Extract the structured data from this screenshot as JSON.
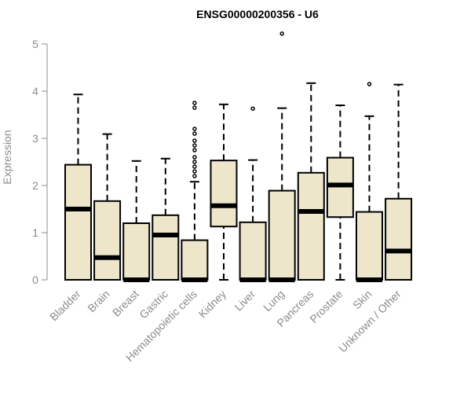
{
  "chart_data": {
    "type": "boxplot",
    "title": "ENSG00000200356 - U6",
    "xlabel": "",
    "ylabel": "Expression",
    "ylim": [
      0,
      5
    ],
    "yticks": [
      0,
      1,
      2,
      3,
      4,
      5
    ],
    "grid": false,
    "legend": "none",
    "box_color": "#ede6cb",
    "categories": [
      "Bladder",
      "Brain",
      "Breast",
      "Gastric",
      "Hematopoietic cells",
      "Kidney",
      "Liver",
      "Lung",
      "Pancreas",
      "Prostate",
      "Skin",
      "Unknown / Other"
    ],
    "boxes": [
      {
        "whisker_low": 0,
        "q1": 0,
        "median": 1.5,
        "q3": 2.44,
        "whisker_high": 3.93,
        "outliers": []
      },
      {
        "whisker_low": 0,
        "q1": 0,
        "median": 0.47,
        "q3": 1.67,
        "whisker_high": 3.09,
        "outliers": []
      },
      {
        "whisker_low": 0,
        "q1": 0,
        "median": 0,
        "q3": 1.2,
        "whisker_high": 2.52,
        "outliers": []
      },
      {
        "whisker_low": 0,
        "q1": 0,
        "median": 0.95,
        "q3": 1.37,
        "whisker_high": 2.57,
        "outliers": []
      },
      {
        "whisker_low": 0,
        "q1": 0,
        "median": 0,
        "q3": 0.84,
        "whisker_high": 2.08,
        "outliers": [
          2.2,
          2.3,
          2.4,
          2.5,
          2.6,
          2.75,
          2.85,
          2.95,
          3.1,
          3.2,
          3.65,
          3.75
        ]
      },
      {
        "whisker_low": 0,
        "q1": 1.13,
        "median": 1.57,
        "q3": 2.53,
        "whisker_high": 3.72,
        "outliers": []
      },
      {
        "whisker_low": 0,
        "q1": 0,
        "median": 0,
        "q3": 1.22,
        "whisker_high": 2.54,
        "outliers": [
          3.63
        ]
      },
      {
        "whisker_low": 0,
        "q1": 0,
        "median": 0,
        "q3": 1.89,
        "whisker_high": 3.64,
        "outliers": [
          5.22
        ]
      },
      {
        "whisker_low": 0,
        "q1": 0,
        "median": 1.45,
        "q3": 2.27,
        "whisker_high": 4.17,
        "outliers": []
      },
      {
        "whisker_low": 0,
        "q1": 1.33,
        "median": 2.01,
        "q3": 2.59,
        "whisker_high": 3.7,
        "outliers": []
      },
      {
        "whisker_low": 0,
        "q1": 0,
        "median": 0,
        "q3": 1.44,
        "whisker_high": 3.47,
        "outliers": [
          4.15
        ]
      },
      {
        "whisker_low": 0,
        "q1": 0,
        "median": 0.61,
        "q3": 1.72,
        "whisker_high": 4.14,
        "outliers": []
      }
    ]
  }
}
